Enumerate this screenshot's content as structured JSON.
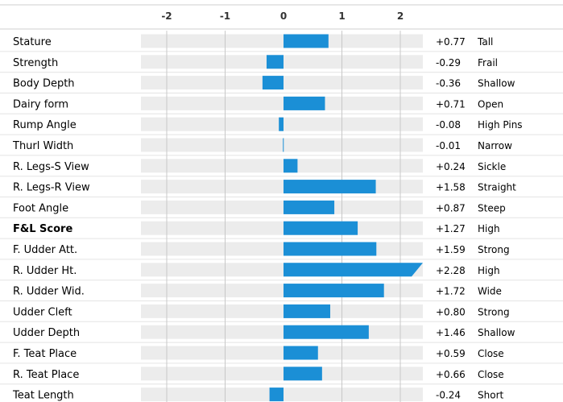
{
  "chart_data": {
    "type": "bar",
    "orientation": "horizontal",
    "x_ticks": [
      -2,
      -1,
      0,
      1,
      2
    ],
    "xlim": [
      -2.57,
      2.4
    ],
    "categories": [
      "Stature",
      "Strength",
      "Body Depth",
      "Dairy form",
      "Rump Angle",
      "Thurl Width",
      "R. Legs-S View",
      "R. Legs-R View",
      "Foot Angle",
      "F&L Score",
      "F. Udder Att.",
      "R. Udder Ht.",
      "R. Udder Wid.",
      "Udder Cleft",
      "Udder Depth",
      "F. Teat Place",
      "R. Teat Place",
      "Teat Length"
    ],
    "values": [
      0.77,
      -0.29,
      -0.36,
      0.71,
      -0.08,
      -0.01,
      0.24,
      1.58,
      0.87,
      1.27,
      1.59,
      2.28,
      1.72,
      0.8,
      1.46,
      0.59,
      0.66,
      -0.24
    ],
    "value_labels": [
      "+0.77",
      "-0.29",
      "-0.36",
      "+0.71",
      "-0.08",
      "-0.01",
      "+0.24",
      "+1.58",
      "+0.87",
      "+1.27",
      "+1.59",
      "+2.28",
      "+1.72",
      "+0.80",
      "+1.46",
      "+0.59",
      "+0.66",
      "-0.24"
    ],
    "descriptors": [
      "Tall",
      "Frail",
      "Shallow",
      "Open",
      "High Pins",
      "Narrow",
      "Sickle",
      "Straight",
      "Steep",
      "High",
      "Strong",
      "High",
      "Wide",
      "Strong",
      "Shallow",
      "Close",
      "Close",
      "Short"
    ],
    "bold_categories": [
      "F&L Score"
    ],
    "bar_color": "#1b8fd6",
    "track_color": "#ececec",
    "grid": true
  }
}
